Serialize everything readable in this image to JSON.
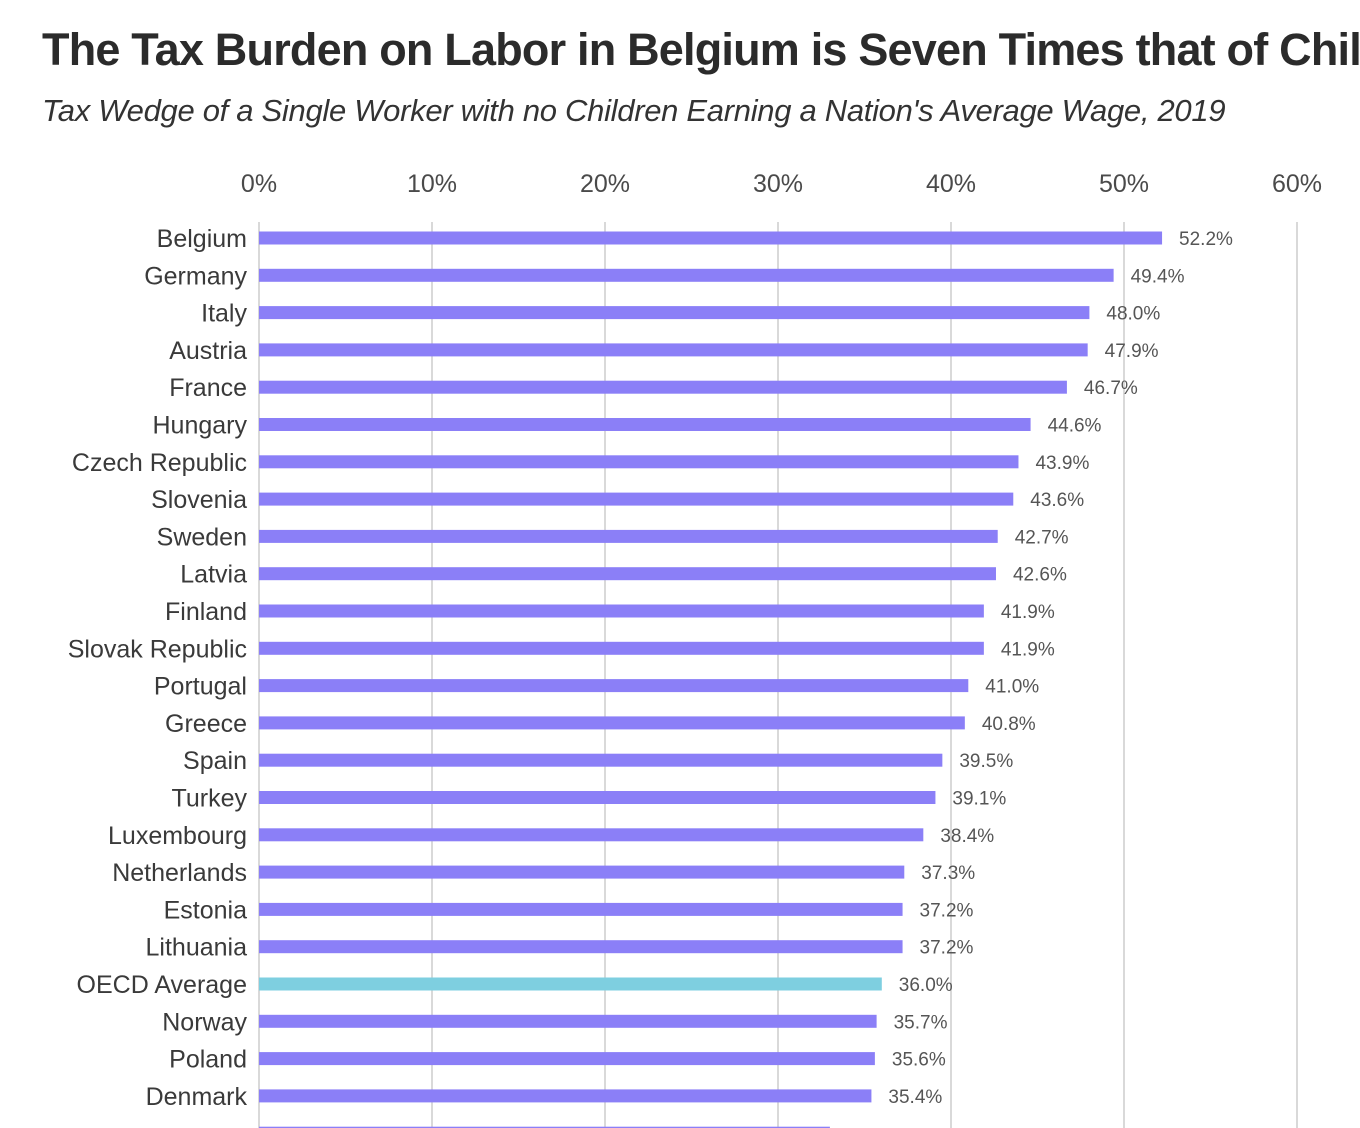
{
  "chart_data": {
    "type": "bar",
    "orientation": "horizontal",
    "title": "The Tax Burden on Labor in Belgium is Seven Times that of Chile",
    "subtitle": "Tax Wedge of a Single Worker with no Children Earning a Nation's Average Wage, 2019",
    "xlim": [
      0,
      60
    ],
    "x_ticks": [
      0,
      10,
      20,
      30,
      40,
      50,
      60
    ],
    "x_tick_labels": [
      "0%",
      "10%",
      "20%",
      "30%",
      "40%",
      "50%",
      "60%"
    ],
    "axis_position": "top",
    "grid": true,
    "colors": {
      "bar": "#8b7ff7",
      "highlight": "#7ecfe0",
      "grid": "#d9d9d9"
    },
    "categories": [
      "Belgium",
      "Germany",
      "Italy",
      "Austria",
      "France",
      "Hungary",
      "Czech Republic",
      "Slovenia",
      "Sweden",
      "Latvia",
      "Finland",
      "Slovak Republic",
      "Portugal",
      "Greece",
      "Spain",
      "Turkey",
      "Luxembourg",
      "Netherlands",
      "Estonia",
      "Lithuania",
      "OECD Average",
      "Norway",
      "Poland",
      "Denmark"
    ],
    "values": [
      52.2,
      49.4,
      48.0,
      47.9,
      46.7,
      44.6,
      43.9,
      43.6,
      42.7,
      42.6,
      41.9,
      41.9,
      41.0,
      40.8,
      39.5,
      39.1,
      38.4,
      37.3,
      37.2,
      37.2,
      36.0,
      35.7,
      35.6,
      35.4
    ],
    "value_labels": [
      "52.2%",
      "49.4%",
      "48.0%",
      "47.9%",
      "46.7%",
      "44.6%",
      "43.9%",
      "43.6%",
      "42.7%",
      "42.6%",
      "41.9%",
      "41.9%",
      "41.0%",
      "40.8%",
      "39.5%",
      "39.1%",
      "38.4%",
      "37.3%",
      "37.2%",
      "37.2%",
      "36.0%",
      "35.7%",
      "35.6%",
      "35.4%"
    ],
    "highlight_category": "OECD Average",
    "truncated_next_value": 33.0
  }
}
